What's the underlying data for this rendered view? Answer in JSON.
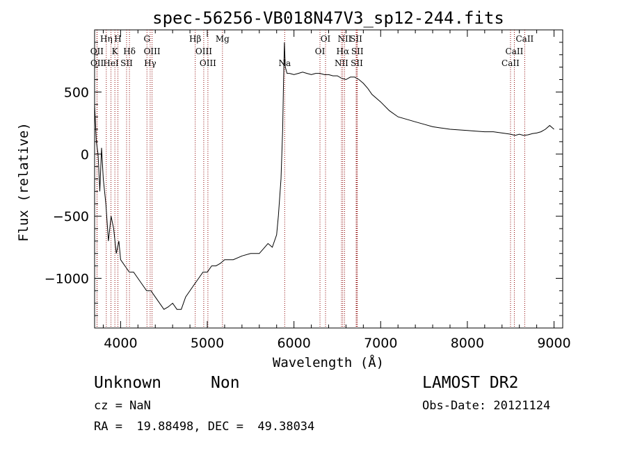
{
  "chart_data": {
    "type": "line",
    "title": "spec-56256-VB018N47V3_sp12-244.fits",
    "xlabel": "Wavelength (Å)",
    "ylabel": "Flux (relative)",
    "xlim": [
      3700,
      9100
    ],
    "ylim": [
      -1400,
      1000
    ],
    "xticks": [
      4000,
      5000,
      6000,
      7000,
      8000,
      9000
    ],
    "yticks": [
      -1000,
      -500,
      0,
      500
    ],
    "ytick_labels": [
      "−1000",
      "−500",
      "0",
      "500"
    ],
    "grid": false,
    "line_color": "#000000",
    "marker_color": "#8b0000",
    "series": [
      {
        "x": [
          3700,
          3720,
          3740,
          3760,
          3780,
          3800,
          3830,
          3860,
          3890,
          3920,
          3950,
          3980,
          4000,
          4050,
          4100,
          4150,
          4200,
          4250,
          4300,
          4350,
          4400,
          4450,
          4500,
          4550,
          4600,
          4650,
          4700,
          4750,
          4800,
          4850,
          4900,
          4950,
          5000,
          5050,
          5100,
          5150,
          5200,
          5300,
          5400,
          5500,
          5600,
          5700,
          5750,
          5800,
          5820,
          5850,
          5870,
          5880,
          5890,
          5900,
          5920,
          5950,
          6000,
          6050,
          6100,
          6150,
          6200,
          6250,
          6300,
          6350,
          6400,
          6450,
          6500,
          6550,
          6600,
          6650,
          6700,
          6750,
          6800,
          6850,
          6900,
          6950,
          7000,
          7100,
          7200,
          7300,
          7400,
          7500,
          7600,
          7700,
          7800,
          7900,
          8000,
          8100,
          8200,
          8300,
          8400,
          8500,
          8550,
          8600,
          8650,
          8700,
          8750,
          8800,
          8850,
          8900,
          8950,
          9000
        ],
        "y": [
          400,
          100,
          0,
          -300,
          50,
          -200,
          -400,
          -700,
          -500,
          -600,
          -800,
          -700,
          -850,
          -900,
          -950,
          -950,
          -1000,
          -1050,
          -1100,
          -1100,
          -1150,
          -1200,
          -1250,
          -1230,
          -1200,
          -1250,
          -1250,
          -1150,
          -1100,
          -1050,
          -1000,
          -950,
          -950,
          -900,
          -900,
          -880,
          -850,
          -850,
          -820,
          -800,
          -800,
          -720,
          -750,
          -650,
          -500,
          -200,
          200,
          600,
          900,
          700,
          650,
          650,
          640,
          650,
          660,
          650,
          640,
          650,
          650,
          640,
          640,
          630,
          630,
          610,
          600,
          620,
          620,
          600,
          570,
          530,
          480,
          450,
          420,
          350,
          300,
          280,
          260,
          240,
          220,
          210,
          200,
          195,
          190,
          185,
          180,
          180,
          170,
          160,
          150,
          160,
          150,
          155,
          165,
          170,
          180,
          200,
          230,
          200
        ]
      }
    ],
    "spectral_lines": [
      {
        "label": "OII",
        "wavelength": 3727,
        "row": 2
      },
      {
        "label": "OII",
        "wavelength": 3729,
        "row": 3
      },
      {
        "label": "Hη",
        "wavelength": 3835,
        "row": 1
      },
      {
        "label": "H",
        "wavelength": 3969,
        "row": 1
      },
      {
        "label": "K",
        "wavelength": 3934,
        "row": 2
      },
      {
        "label": "HeI",
        "wavelength": 3889,
        "row": 3
      },
      {
        "label": "Hδ",
        "wavelength": 4102,
        "row": 2
      },
      {
        "label": "SII",
        "wavelength": 4069,
        "row": 3
      },
      {
        "label": "G",
        "wavelength": 4304,
        "row": 1
      },
      {
        "label": "OIII",
        "wavelength": 4363,
        "row": 2
      },
      {
        "label": "Hγ",
        "wavelength": 4341,
        "row": 3
      },
      {
        "label": "Hβ",
        "wavelength": 4861,
        "row": 1
      },
      {
        "label": "OIII",
        "wavelength": 4959,
        "row": 2
      },
      {
        "label": "OIII",
        "wavelength": 5007,
        "row": 3
      },
      {
        "label": "Mg",
        "wavelength": 5175,
        "row": 1
      },
      {
        "label": "Na",
        "wavelength": 5893,
        "row": 3
      },
      {
        "label": "OI",
        "wavelength": 6364,
        "row": 1
      },
      {
        "label": "OI",
        "wavelength": 6300,
        "row": 2
      },
      {
        "label": "NII",
        "wavelength": 6548,
        "row": 3
      },
      {
        "label": "NII",
        "wavelength": 6584,
        "row": 1
      },
      {
        "label": "Hα",
        "wavelength": 6563,
        "row": 2
      },
      {
        "label": "SII",
        "wavelength": 6717,
        "row": 1
      },
      {
        "label": "SII",
        "wavelength": 6731,
        "row": 2
      },
      {
        "label": "SII",
        "wavelength": 6725,
        "row": 3
      },
      {
        "label": "CaII",
        "wavelength": 8662,
        "row": 1
      },
      {
        "label": "CaII",
        "wavelength": 8542,
        "row": 2
      },
      {
        "label": "CaII",
        "wavelength": 8498,
        "row": 3
      }
    ]
  },
  "footer": {
    "class_label": "Unknown",
    "subclass_label": "Non",
    "survey": "LAMOST DR2",
    "cz": "cz = NaN",
    "obs_date": "Obs-Date: 20121124",
    "coords": "RA =  19.88498, DEC =  49.38034"
  }
}
